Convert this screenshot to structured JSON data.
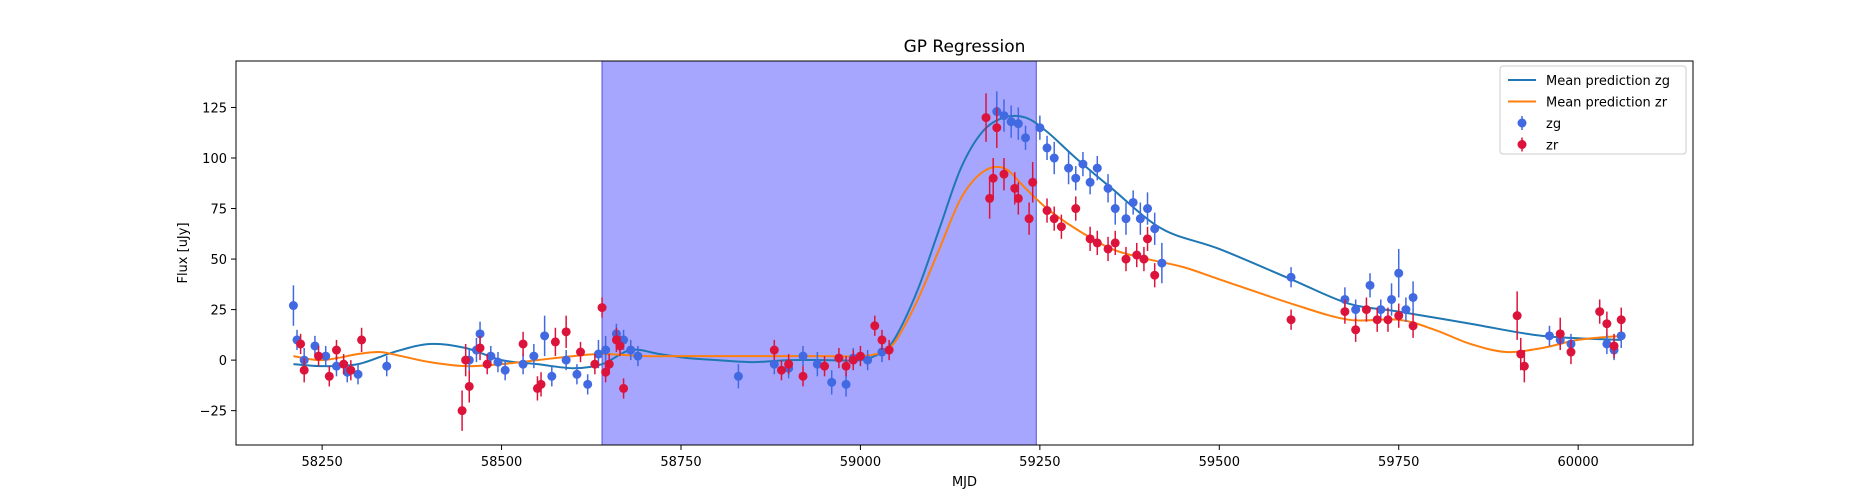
{
  "chart_data": {
    "type": "scatter",
    "title": "GP Regression",
    "xlabel": "MJD",
    "ylabel": "Flux [uJy]",
    "xlim": [
      58130,
      60160
    ],
    "ylim": [
      -42,
      148
    ],
    "xticks": [
      58250,
      58500,
      58750,
      59000,
      59250,
      59500,
      59750,
      60000
    ],
    "yticks": [
      -25,
      0,
      25,
      50,
      75,
      100,
      125
    ],
    "shaded_region": {
      "x0": 58640,
      "x1": 59245,
      "color": "#a6a6ff"
    },
    "legend_position": "upper right",
    "series": [
      {
        "name": "Mean prediction zg",
        "kind": "line",
        "color": "#1f77b4",
        "x": [
          58210,
          58250,
          58300,
          58350,
          58400,
          58450,
          58500,
          58550,
          58600,
          58640,
          58680,
          58720,
          58760,
          58800,
          58850,
          58900,
          58950,
          59000,
          59030,
          59050,
          59080,
          59110,
          59140,
          59170,
          59200,
          59230,
          59260,
          59300,
          59350,
          59420,
          59500,
          59600,
          59680,
          59750,
          59850,
          59950,
          60060
        ],
        "y": [
          -2,
          -3,
          -2,
          4,
          8,
          6,
          0,
          -2,
          -4,
          -2,
          5,
          3,
          1,
          0,
          -1,
          0,
          0,
          0,
          4,
          12,
          35,
          65,
          95,
          113,
          120,
          120,
          113,
          100,
          85,
          65,
          55,
          40,
          28,
          24,
          18,
          12,
          10
        ]
      },
      {
        "name": "Mean prediction zr",
        "kind": "line",
        "color": "#ff7f0e",
        "x": [
          58210,
          58250,
          58300,
          58330,
          58360,
          58400,
          58450,
          58500,
          58550,
          58600,
          58640,
          58700,
          58750,
          58800,
          58850,
          58900,
          58950,
          59000,
          59030,
          59050,
          59080,
          59110,
          59140,
          59170,
          59200,
          59230,
          59260,
          59300,
          59350,
          59400,
          59450,
          59500,
          59600,
          59680,
          59750,
          59800,
          59850,
          59900,
          59950,
          60000,
          60060
        ],
        "y": [
          2,
          0,
          3,
          4,
          2,
          -1,
          -3,
          -2,
          0,
          2,
          3,
          2,
          2,
          2,
          2,
          2,
          2,
          2,
          4,
          10,
          30,
          55,
          80,
          93,
          95,
          85,
          75,
          65,
          55,
          50,
          46,
          40,
          28,
          20,
          20,
          15,
          8,
          4,
          6,
          10,
          12
        ]
      },
      {
        "name": "zg",
        "kind": "errorbar",
        "color": "#4169e1",
        "x": [
          58210,
          58215,
          58225,
          58240,
          58255,
          58270,
          58285,
          58300,
          58340,
          58455,
          58465,
          58470,
          58485,
          58495,
          58505,
          58530,
          58545,
          58560,
          58570,
          58590,
          58605,
          58620,
          58635,
          58645,
          58660,
          58670,
          58680,
          58690,
          58830,
          58880,
          58900,
          58920,
          58940,
          58960,
          58980,
          58990,
          59010,
          59030,
          59190,
          59200,
          59210,
          59220,
          59230,
          59250,
          59260,
          59270,
          59290,
          59300,
          59310,
          59320,
          59330,
          59345,
          59355,
          59370,
          59380,
          59390,
          59400,
          59410,
          59420,
          59600,
          59675,
          59690,
          59710,
          59725,
          59740,
          59750,
          59760,
          59770,
          59960,
          59975,
          59990,
          60040,
          60050,
          60060
        ],
        "y": [
          27,
          10,
          0,
          7,
          2,
          -3,
          -6,
          -7,
          -3,
          0,
          5,
          13,
          2,
          -1,
          -5,
          -2,
          2,
          12,
          -8,
          0,
          -7,
          -12,
          3,
          5,
          13,
          10,
          5,
          2,
          -8,
          -2,
          -4,
          2,
          -2,
          -11,
          -12,
          1,
          0,
          4,
          123,
          121,
          118,
          117,
          110,
          115,
          105,
          100,
          95,
          90,
          97,
          88,
          95,
          85,
          75,
          70,
          78,
          70,
          75,
          65,
          48,
          41,
          30,
          25,
          37,
          25,
          30,
          43,
          25,
          31,
          12,
          10,
          8,
          8,
          5,
          12
        ],
        "yerr": [
          10,
          5,
          6,
          5,
          5,
          5,
          5,
          5,
          5,
          5,
          6,
          6,
          5,
          5,
          5,
          5,
          6,
          10,
          5,
          5,
          5,
          5,
          7,
          7,
          5,
          5,
          5,
          5,
          6,
          5,
          5,
          5,
          6,
          6,
          6,
          5,
          5,
          5,
          10,
          8,
          8,
          8,
          6,
          6,
          6,
          8,
          8,
          6,
          6,
          6,
          6,
          7,
          8,
          8,
          6,
          8,
          8,
          8,
          10,
          5,
          6,
          5,
          6,
          5,
          8,
          12,
          6,
          8,
          5,
          5,
          5,
          5,
          5,
          6
        ]
      },
      {
        "name": "zr",
        "kind": "errorbar",
        "color": "#dc143c",
        "x": [
          58220,
          58225,
          58245,
          58260,
          58270,
          58280,
          58290,
          58305,
          58445,
          58450,
          58455,
          58470,
          58480,
          58530,
          58550,
          58555,
          58575,
          58590,
          58610,
          58630,
          58640,
          58645,
          58650,
          58660,
          58665,
          58670,
          58880,
          58890,
          58900,
          58920,
          58950,
          58970,
          58980,
          58990,
          59000,
          59020,
          59030,
          59040,
          59175,
          59180,
          59185,
          59190,
          59200,
          59215,
          59220,
          59235,
          59240,
          59260,
          59270,
          59280,
          59300,
          59320,
          59330,
          59345,
          59355,
          59370,
          59385,
          59395,
          59400,
          59410,
          59600,
          59675,
          59690,
          59705,
          59720,
          59735,
          59750,
          59770,
          59915,
          59920,
          59925,
          59975,
          59990,
          60030,
          60040,
          60050,
          60060
        ],
        "y": [
          8,
          -5,
          2,
          -8,
          5,
          -2,
          -5,
          10,
          -25,
          0,
          -13,
          6,
          -2,
          8,
          -14,
          -12,
          9,
          14,
          4,
          -2,
          26,
          -6,
          -2,
          10,
          7,
          -14,
          5,
          -5,
          -2,
          -8,
          -3,
          1,
          -3,
          0,
          2,
          17,
          10,
          5,
          120,
          80,
          90,
          115,
          92,
          85,
          80,
          70,
          88,
          74,
          70,
          66,
          75,
          60,
          58,
          55,
          58,
          50,
          52,
          50,
          60,
          42,
          20,
          24,
          15,
          25,
          20,
          20,
          22,
          17,
          22,
          3,
          -3,
          13,
          4,
          24,
          18,
          7,
          20
        ],
        "yerr": [
          5,
          6,
          5,
          5,
          5,
          5,
          5,
          6,
          10,
          8,
          8,
          6,
          5,
          6,
          6,
          6,
          7,
          8,
          5,
          5,
          5,
          5,
          5,
          6,
          5,
          5,
          5,
          5,
          5,
          5,
          5,
          5,
          5,
          5,
          5,
          5,
          5,
          5,
          12,
          10,
          10,
          10,
          8,
          8,
          8,
          8,
          10,
          6,
          6,
          6,
          6,
          6,
          6,
          6,
          6,
          6,
          6,
          6,
          6,
          6,
          5,
          6,
          6,
          6,
          6,
          6,
          6,
          6,
          12,
          8,
          8,
          8,
          6,
          6,
          6,
          6,
          6
        ]
      }
    ]
  }
}
